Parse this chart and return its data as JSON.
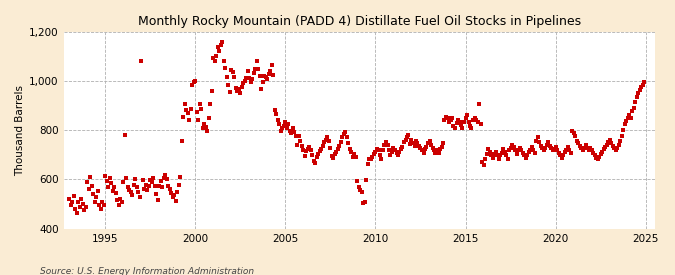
{
  "title": "Monthly Rocky Mountain (PADD 4) Distillate Fuel Oil Stocks in Pipelines",
  "ylabel": "Thousand Barrels",
  "source": "Source: U.S. Energy Information Administration",
  "background_color": "#faecd4",
  "plot_background": "#ffffff",
  "marker_color": "#cc0000",
  "ylim": [
    400,
    1200
  ],
  "yticks": [
    400,
    600,
    800,
    1000,
    1200
  ],
  "ytick_labels": [
    "400",
    "600",
    "800",
    "1,000",
    "1,200"
  ],
  "xticks": [
    1995,
    2000,
    2005,
    2010,
    2015,
    2020,
    2025
  ],
  "xlim_start": 1992.7,
  "xlim_end": 2025.5,
  "dates": [
    1993.0,
    1993.08,
    1993.17,
    1993.25,
    1993.33,
    1993.42,
    1993.5,
    1993.58,
    1993.67,
    1993.75,
    1993.83,
    1993.92,
    1994.0,
    1994.08,
    1994.17,
    1994.25,
    1994.33,
    1994.42,
    1994.5,
    1994.58,
    1994.67,
    1994.75,
    1994.83,
    1994.92,
    1995.0,
    1995.08,
    1995.17,
    1995.25,
    1995.33,
    1995.42,
    1995.5,
    1995.58,
    1995.67,
    1995.75,
    1995.83,
    1995.92,
    1996.0,
    1996.08,
    1996.17,
    1996.25,
    1996.33,
    1996.42,
    1996.5,
    1996.58,
    1996.67,
    1996.75,
    1996.83,
    1996.92,
    1997.0,
    1997.08,
    1997.17,
    1997.25,
    1997.33,
    1997.42,
    1997.5,
    1997.58,
    1997.67,
    1997.75,
    1997.83,
    1997.92,
    1998.0,
    1998.08,
    1998.17,
    1998.25,
    1998.33,
    1998.42,
    1998.5,
    1998.58,
    1998.67,
    1998.75,
    1998.83,
    1998.92,
    1999.0,
    1999.08,
    1999.17,
    1999.25,
    1999.33,
    1999.42,
    1999.5,
    1999.58,
    1999.67,
    1999.75,
    1999.83,
    1999.92,
    2000.0,
    2000.08,
    2000.17,
    2000.25,
    2000.33,
    2000.42,
    2000.5,
    2000.58,
    2000.67,
    2000.75,
    2000.83,
    2000.92,
    2001.0,
    2001.08,
    2001.17,
    2001.25,
    2001.33,
    2001.42,
    2001.5,
    2001.58,
    2001.67,
    2001.75,
    2001.83,
    2001.92,
    2002.0,
    2002.08,
    2002.17,
    2002.25,
    2002.33,
    2002.42,
    2002.5,
    2002.58,
    2002.67,
    2002.75,
    2002.83,
    2002.92,
    2003.0,
    2003.08,
    2003.17,
    2003.25,
    2003.33,
    2003.42,
    2003.5,
    2003.58,
    2003.67,
    2003.75,
    2003.83,
    2003.92,
    2004.0,
    2004.08,
    2004.17,
    2004.25,
    2004.33,
    2004.42,
    2004.5,
    2004.58,
    2004.67,
    2004.75,
    2004.83,
    2004.92,
    2005.0,
    2005.08,
    2005.17,
    2005.25,
    2005.33,
    2005.42,
    2005.5,
    2005.58,
    2005.67,
    2005.75,
    2005.83,
    2005.92,
    2006.0,
    2006.08,
    2006.17,
    2006.25,
    2006.33,
    2006.42,
    2006.5,
    2006.58,
    2006.67,
    2006.75,
    2006.83,
    2006.92,
    2007.0,
    2007.08,
    2007.17,
    2007.25,
    2007.33,
    2007.42,
    2007.5,
    2007.58,
    2007.67,
    2007.75,
    2007.83,
    2007.92,
    2008.0,
    2008.08,
    2008.17,
    2008.25,
    2008.33,
    2008.42,
    2008.5,
    2008.58,
    2008.67,
    2008.75,
    2008.83,
    2008.92,
    2009.0,
    2009.08,
    2009.17,
    2009.25,
    2009.33,
    2009.42,
    2009.5,
    2009.58,
    2009.67,
    2009.75,
    2009.83,
    2009.92,
    2010.0,
    2010.08,
    2010.17,
    2010.25,
    2010.33,
    2010.42,
    2010.5,
    2010.58,
    2010.67,
    2010.75,
    2010.83,
    2010.92,
    2011.0,
    2011.08,
    2011.17,
    2011.25,
    2011.33,
    2011.42,
    2011.5,
    2011.58,
    2011.67,
    2011.75,
    2011.83,
    2011.92,
    2012.0,
    2012.08,
    2012.17,
    2012.25,
    2012.33,
    2012.42,
    2012.5,
    2012.58,
    2012.67,
    2012.75,
    2012.83,
    2012.92,
    2013.0,
    2013.08,
    2013.17,
    2013.25,
    2013.33,
    2013.42,
    2013.5,
    2013.58,
    2013.67,
    2013.75,
    2013.83,
    2013.92,
    2014.0,
    2014.08,
    2014.17,
    2014.25,
    2014.33,
    2014.42,
    2014.5,
    2014.58,
    2014.67,
    2014.75,
    2014.83,
    2014.92,
    2015.0,
    2015.08,
    2015.17,
    2015.25,
    2015.33,
    2015.42,
    2015.5,
    2015.58,
    2015.67,
    2015.75,
    2015.83,
    2015.92,
    2016.0,
    2016.08,
    2016.17,
    2016.25,
    2016.33,
    2016.42,
    2016.5,
    2016.58,
    2016.67,
    2016.75,
    2016.83,
    2016.92,
    2017.0,
    2017.08,
    2017.17,
    2017.25,
    2017.33,
    2017.42,
    2017.5,
    2017.58,
    2017.67,
    2017.75,
    2017.83,
    2017.92,
    2018.0,
    2018.08,
    2018.17,
    2018.25,
    2018.33,
    2018.42,
    2018.5,
    2018.58,
    2018.67,
    2018.75,
    2018.83,
    2018.92,
    2019.0,
    2019.08,
    2019.17,
    2019.25,
    2019.33,
    2019.42,
    2019.5,
    2019.58,
    2019.67,
    2019.75,
    2019.83,
    2019.92,
    2020.0,
    2020.08,
    2020.17,
    2020.25,
    2020.33,
    2020.42,
    2020.5,
    2020.58,
    2020.67,
    2020.75,
    2020.83,
    2020.92,
    2021.0,
    2021.08,
    2021.17,
    2021.25,
    2021.33,
    2021.42,
    2021.5,
    2021.58,
    2021.67,
    2021.75,
    2021.83,
    2021.92,
    2022.0,
    2022.08,
    2022.17,
    2022.25,
    2022.33,
    2022.42,
    2022.5,
    2022.58,
    2022.67,
    2022.75,
    2022.83,
    2022.92,
    2023.0,
    2023.08,
    2023.17,
    2023.25,
    2023.33,
    2023.42,
    2023.5,
    2023.58,
    2023.67,
    2023.75,
    2023.83,
    2023.92,
    2024.0,
    2024.08,
    2024.17,
    2024.25,
    2024.33,
    2024.42,
    2024.5,
    2024.58,
    2024.67,
    2024.75,
    2024.83,
    2024.92
  ],
  "values": [
    521,
    497,
    510,
    533,
    478,
    463,
    508,
    490,
    520,
    500,
    474,
    489,
    588,
    560,
    610,
    575,
    540,
    508,
    530,
    555,
    495,
    480,
    510,
    498,
    614,
    595,
    568,
    605,
    585,
    555,
    570,
    543,
    515,
    498,
    519,
    508,
    590,
    780,
    605,
    570,
    558,
    548,
    536,
    578,
    602,
    568,
    548,
    530,
    1082,
    598,
    562,
    578,
    558,
    572,
    598,
    588,
    606,
    572,
    542,
    518,
    572,
    595,
    568,
    605,
    618,
    602,
    575,
    560,
    545,
    528,
    538,
    512,
    548,
    578,
    608,
    755,
    855,
    905,
    882,
    870,
    840,
    888,
    985,
    995,
    1000,
    875,
    842,
    905,
    885,
    810,
    825,
    815,
    798,
    852,
    905,
    960,
    1092,
    1082,
    1102,
    1138,
    1122,
    1148,
    1158,
    1082,
    1052,
    1018,
    985,
    955,
    1045,
    1038,
    1018,
    972,
    958,
    968,
    952,
    978,
    992,
    1002,
    1012,
    1042,
    1012,
    995,
    1008,
    1032,
    1048,
    1082,
    1048,
    1022,
    968,
    998,
    1022,
    1018,
    1008,
    1028,
    1042,
    1065,
    1025,
    882,
    868,
    842,
    825,
    798,
    808,
    818,
    835,
    810,
    825,
    798,
    788,
    808,
    792,
    775,
    742,
    778,
    758,
    735,
    718,
    695,
    715,
    722,
    732,
    718,
    698,
    675,
    665,
    692,
    705,
    715,
    722,
    735,
    752,
    762,
    772,
    758,
    728,
    695,
    688,
    702,
    712,
    722,
    735,
    752,
    772,
    785,
    795,
    772,
    748,
    725,
    712,
    692,
    705,
    690,
    595,
    568,
    558,
    548,
    505,
    508,
    598,
    662,
    682,
    685,
    692,
    702,
    710,
    725,
    718,
    698,
    682,
    718,
    742,
    752,
    742,
    718,
    698,
    712,
    728,
    718,
    708,
    698,
    712,
    722,
    732,
    752,
    762,
    772,
    782,
    745,
    762,
    748,
    738,
    758,
    748,
    738,
    728,
    718,
    708,
    722,
    732,
    748,
    758,
    742,
    728,
    718,
    708,
    720,
    708,
    722,
    732,
    748,
    840,
    855,
    848,
    835,
    842,
    852,
    818,
    808,
    828,
    842,
    835,
    822,
    808,
    835,
    848,
    862,
    832,
    818,
    808,
    842,
    852,
    842,
    832,
    908,
    825,
    672,
    658,
    682,
    705,
    725,
    712,
    698,
    688,
    702,
    712,
    698,
    685,
    698,
    708,
    722,
    712,
    698,
    682,
    718,
    728,
    742,
    732,
    718,
    705,
    718,
    728,
    718,
    708,
    698,
    688,
    698,
    710,
    720,
    732,
    720,
    708,
    758,
    772,
    752,
    738,
    728,
    718,
    728,
    742,
    752,
    738,
    728,
    718,
    722,
    732,
    718,
    708,
    698,
    688,
    698,
    710,
    720,
    732,
    720,
    708,
    798,
    788,
    775,
    758,
    748,
    738,
    728,
    718,
    730,
    742,
    730,
    718,
    730,
    720,
    708,
    698,
    688,
    682,
    692,
    702,
    712,
    722,
    732,
    742,
    752,
    762,
    748,
    738,
    728,
    718,
    728,
    742,
    758,
    778,
    800,
    825,
    838,
    848,
    862,
    848,
    878,
    890,
    915,
    935,
    952,
    962,
    975,
    985,
    998
  ]
}
